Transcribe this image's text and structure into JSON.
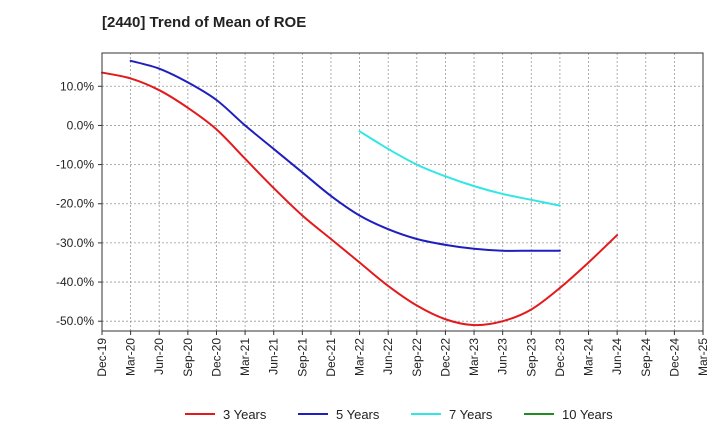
{
  "chart_data": {
    "type": "line",
    "title": "[2440]  Trend of Mean of ROE",
    "xlabel": "",
    "ylabel": "",
    "ylim": [
      -52.5,
      18.5
    ],
    "yticks": [
      10,
      0,
      -10,
      -20,
      -30,
      -40,
      -50
    ],
    "ytick_labels": [
      "10.0%",
      "0.0%",
      "-10.0%",
      "-20.0%",
      "-30.0%",
      "-40.0%",
      "-50.0%"
    ],
    "x_tick_labels": [
      "Dec-19",
      "Mar-20",
      "Jun-20",
      "Sep-20",
      "Dec-20",
      "Mar-21",
      "Jun-21",
      "Sep-21",
      "Dec-21",
      "Mar-22",
      "Jun-22",
      "Sep-22",
      "Dec-22",
      "Mar-23",
      "Jun-23",
      "Sep-23",
      "Dec-23",
      "Mar-24",
      "Jun-24",
      "Sep-24",
      "Dec-24",
      "Mar-25"
    ],
    "grid": true,
    "legend_position": "bottom",
    "series": [
      {
        "name": "3 Years",
        "color": "#e31a1c",
        "values": [
          13.5,
          12.0,
          9.0,
          4.5,
          -1.0,
          -8.5,
          -16.0,
          -23.0,
          -29.0,
          -35.0,
          -41.0,
          -46.0,
          -49.5,
          -51.0,
          -50.0,
          -47.0,
          -41.5,
          -35.0,
          -28.0
        ]
      },
      {
        "name": "5 Years",
        "color": "#1f1fbf",
        "values": [
          null,
          16.5,
          14.5,
          11.0,
          6.5,
          0.0,
          -6.0,
          -12.0,
          -18.0,
          -23.0,
          -26.5,
          -29.0,
          -30.5,
          -31.5,
          -32.0,
          -32.0,
          -32.0
        ]
      },
      {
        "name": "7 Years",
        "color": "#33e6e6",
        "values": [
          null,
          null,
          null,
          null,
          null,
          null,
          null,
          null,
          null,
          -1.5,
          -6.0,
          -10.0,
          -13.0,
          -15.5,
          -17.5,
          -19.0,
          -20.5
        ]
      },
      {
        "name": "10 Years",
        "color": "#228b22",
        "values": []
      }
    ]
  }
}
